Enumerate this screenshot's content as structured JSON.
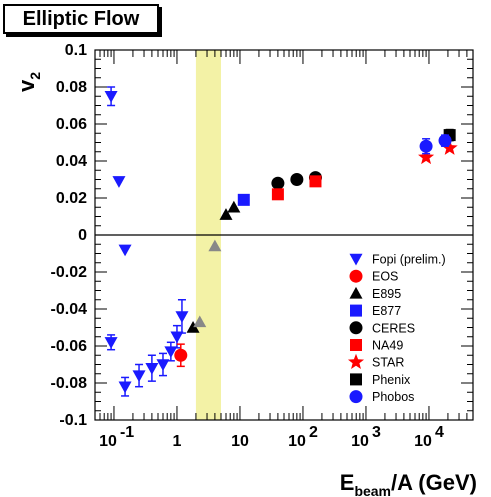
{
  "chart_data": {
    "type": "scatter",
    "title": "Elliptic Flow",
    "xlabel_main": "E",
    "xlabel_sub": "beam",
    "xlabel_rest": "/A (GeV)",
    "ylabel_main": "v",
    "ylabel_sub": "2",
    "xscale": "log",
    "xlim": [
      0.05,
      50000
    ],
    "ylim": [
      -0.1,
      0.1
    ],
    "x_ticks": [
      {
        "value": 0.1,
        "base": "10",
        "exp": "-1"
      },
      {
        "value": 1,
        "base": "1",
        "exp": ""
      },
      {
        "value": 10,
        "base": "10",
        "exp": ""
      },
      {
        "value": 100,
        "base": "10",
        "exp": "2"
      },
      {
        "value": 1000,
        "base": "10",
        "exp": "3"
      },
      {
        "value": 10000,
        "base": "10",
        "exp": "4"
      }
    ],
    "y_ticks": [
      {
        "value": 0.1,
        "label": "0.1"
      },
      {
        "value": 0.08,
        "label": "0.08"
      },
      {
        "value": 0.06,
        "label": "0.06"
      },
      {
        "value": 0.04,
        "label": "0.04"
      },
      {
        "value": 0.02,
        "label": "0.02"
      },
      {
        "value": 0,
        "label": "0"
      },
      {
        "value": -0.02,
        "label": "-0.02"
      },
      {
        "value": -0.04,
        "label": "-0.04"
      },
      {
        "value": -0.06,
        "label": "-0.06"
      },
      {
        "value": -0.08,
        "label": "-0.08"
      },
      {
        "value": -0.1,
        "label": "-0.1"
      }
    ],
    "zero_line": 0,
    "band": {
      "x_range": [
        2,
        5
      ],
      "color": "#f3f2a6"
    },
    "legend_position": "lower-right",
    "series": [
      {
        "name": "Fopi (prelim.)",
        "marker": "triangle-down",
        "color": "#1a1aff",
        "points": [
          {
            "x": 0.09,
            "y": 0.075,
            "err": 0.005
          },
          {
            "x": 0.12,
            "y": 0.029
          },
          {
            "x": 0.15,
            "y": -0.008
          },
          {
            "x": 0.09,
            "y": -0.058,
            "err": 0.004
          },
          {
            "x": 0.15,
            "y": -0.082,
            "err": 0.005
          },
          {
            "x": 0.25,
            "y": -0.076,
            "err": 0.006
          },
          {
            "x": 0.4,
            "y": -0.072,
            "err": 0.007
          },
          {
            "x": 0.6,
            "y": -0.07,
            "err": 0.006
          },
          {
            "x": 0.8,
            "y": -0.063,
            "err": 0.005
          },
          {
            "x": 1.0,
            "y": -0.055,
            "err": 0.006
          },
          {
            "x": 1.2,
            "y": -0.044,
            "err": 0.009
          }
        ]
      },
      {
        "name": "EOS",
        "marker": "circle",
        "color": "#ff0000",
        "points": [
          {
            "x": 1.15,
            "y": -0.065,
            "err": 0.006
          }
        ]
      },
      {
        "name": "E895",
        "marker": "triangle-up",
        "color": "#000000",
        "points": [
          {
            "x": 1.8,
            "y": -0.05
          },
          {
            "x": 2.3,
            "y": -0.047
          },
          {
            "x": 4,
            "y": -0.006
          },
          {
            "x": 6,
            "y": 0.011
          },
          {
            "x": 8,
            "y": 0.015
          }
        ]
      },
      {
        "name": "E877",
        "marker": "square",
        "color": "#1a1aff",
        "points": [
          {
            "x": 11.5,
            "y": 0.019
          }
        ]
      },
      {
        "name": "CERES",
        "marker": "circle",
        "color": "#000000",
        "points": [
          {
            "x": 40,
            "y": 0.028
          },
          {
            "x": 80,
            "y": 0.03
          },
          {
            "x": 158,
            "y": 0.031
          }
        ]
      },
      {
        "name": "NA49",
        "marker": "square",
        "color": "#ff0000",
        "points": [
          {
            "x": 40,
            "y": 0.022
          },
          {
            "x": 158,
            "y": 0.029
          }
        ]
      },
      {
        "name": "STAR",
        "marker": "star",
        "color": "#ff0000",
        "points": [
          {
            "x": 9000,
            "y": 0.042
          },
          {
            "x": 21300,
            "y": 0.047
          }
        ]
      },
      {
        "name": "Phenix",
        "marker": "square",
        "color": "#000000",
        "points": [
          {
            "x": 21300,
            "y": 0.054,
            "err": 0.003
          }
        ]
      },
      {
        "name": "Phobos",
        "marker": "circle",
        "color": "#1a1aff",
        "points": [
          {
            "x": 9000,
            "y": 0.048,
            "err": 0.004
          },
          {
            "x": 18000,
            "y": 0.051,
            "err": 0.003
          }
        ]
      }
    ]
  }
}
